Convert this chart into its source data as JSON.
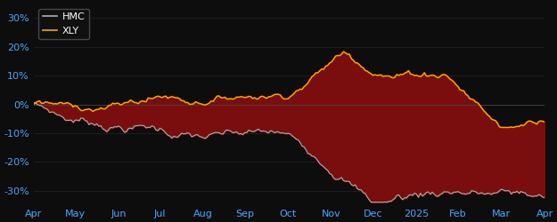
{
  "background_color": "#0d0d0d",
  "plot_bg_color": "#0d0d0d",
  "hmc_color": "#b0b0b0",
  "xly_color": "#FFA500",
  "fill_color": "#7a0e0e",
  "tick_color": "#4da6ff",
  "ylim": [
    -35,
    35
  ],
  "yticks": [
    -30,
    -20,
    -10,
    0,
    10,
    20,
    30
  ],
  "ytick_labels": [
    "-30%",
    "-20%",
    "-10%",
    "0%",
    "10%",
    "20%",
    "30%"
  ],
  "xtick_labels": [
    "Apr",
    "May",
    "Jun",
    "Jul",
    "Aug",
    "Sep",
    "Oct",
    "Nov",
    "Dec",
    "2025",
    "Feb",
    "Mar",
    "Apr"
  ],
  "n_points": 260
}
